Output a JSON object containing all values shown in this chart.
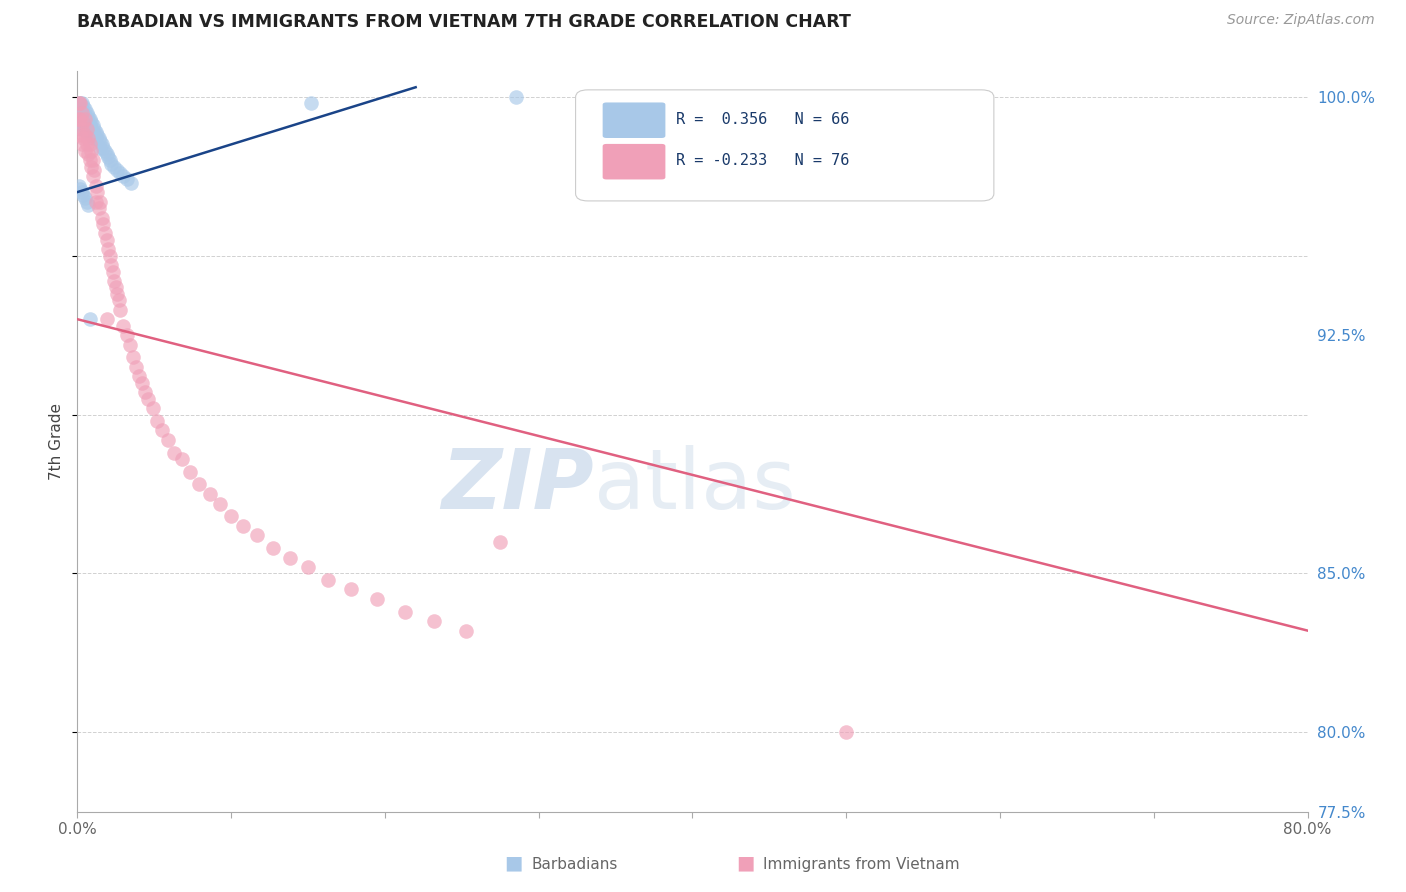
{
  "title": "BARBADIAN VS IMMIGRANTS FROM VIETNAM 7TH GRADE CORRELATION CHART",
  "source": "Source: ZipAtlas.com",
  "xlabel_label": "Barbadians",
  "xlabel_label2": "Immigrants from Vietnam",
  "ylabel": "7th Grade",
  "xmin": 0.0,
  "xmax": 0.8,
  "ymin": 0.775,
  "ymax": 1.008,
  "r_blue": 0.356,
  "n_blue": 66,
  "r_pink": -0.233,
  "n_pink": 76,
  "blue_color": "#a8c8e8",
  "pink_color": "#f0a0b8",
  "blue_line_color": "#1a4488",
  "pink_line_color": "#e06080",
  "title_color": "#222222",
  "source_color": "#999999",
  "right_tick_color": "#4488cc",
  "watermark_color": "#ccd8ee",
  "grid_color": "#cccccc",
  "blue_line_x": [
    0.0,
    0.22
  ],
  "blue_line_y": [
    0.97,
    1.003
  ],
  "pink_line_x": [
    0.0,
    0.8
  ],
  "pink_line_y": [
    0.93,
    0.832
  ],
  "blue_scatter_x": [
    0.001,
    0.001,
    0.001,
    0.002,
    0.002,
    0.002,
    0.002,
    0.003,
    0.003,
    0.003,
    0.003,
    0.003,
    0.004,
    0.004,
    0.004,
    0.004,
    0.005,
    0.005,
    0.005,
    0.005,
    0.006,
    0.006,
    0.006,
    0.006,
    0.007,
    0.007,
    0.007,
    0.008,
    0.008,
    0.008,
    0.009,
    0.009,
    0.01,
    0.01,
    0.01,
    0.011,
    0.011,
    0.012,
    0.012,
    0.013,
    0.014,
    0.015,
    0.015,
    0.016,
    0.017,
    0.018,
    0.019,
    0.02,
    0.021,
    0.022,
    0.024,
    0.026,
    0.028,
    0.03,
    0.032,
    0.035,
    0.001,
    0.002,
    0.003,
    0.004,
    0.005,
    0.006,
    0.007,
    0.152,
    0.285,
    0.008
  ],
  "blue_scatter_y": [
    0.998,
    0.996,
    0.994,
    0.998,
    0.996,
    0.994,
    0.992,
    0.998,
    0.996,
    0.994,
    0.992,
    0.99,
    0.997,
    0.995,
    0.993,
    0.991,
    0.996,
    0.994,
    0.992,
    0.99,
    0.995,
    0.993,
    0.991,
    0.989,
    0.994,
    0.992,
    0.99,
    0.993,
    0.991,
    0.989,
    0.992,
    0.99,
    0.991,
    0.989,
    0.987,
    0.99,
    0.988,
    0.989,
    0.987,
    0.988,
    0.987,
    0.986,
    0.984,
    0.985,
    0.984,
    0.983,
    0.982,
    0.981,
    0.98,
    0.979,
    0.978,
    0.977,
    0.976,
    0.975,
    0.974,
    0.973,
    0.972,
    0.971,
    0.97,
    0.969,
    0.968,
    0.967,
    0.966,
    0.998,
    1.0,
    0.93
  ],
  "pink_scatter_x": [
    0.001,
    0.001,
    0.002,
    0.002,
    0.002,
    0.003,
    0.003,
    0.003,
    0.004,
    0.004,
    0.005,
    0.005,
    0.005,
    0.006,
    0.006,
    0.007,
    0.007,
    0.008,
    0.008,
    0.009,
    0.009,
    0.01,
    0.01,
    0.011,
    0.012,
    0.012,
    0.013,
    0.014,
    0.015,
    0.016,
    0.017,
    0.018,
    0.019,
    0.02,
    0.021,
    0.022,
    0.023,
    0.024,
    0.025,
    0.026,
    0.027,
    0.028,
    0.03,
    0.032,
    0.034,
    0.036,
    0.038,
    0.04,
    0.042,
    0.044,
    0.046,
    0.049,
    0.052,
    0.055,
    0.059,
    0.063,
    0.068,
    0.073,
    0.079,
    0.086,
    0.093,
    0.1,
    0.108,
    0.117,
    0.127,
    0.138,
    0.15,
    0.163,
    0.178,
    0.195,
    0.213,
    0.232,
    0.253,
    0.019,
    0.5,
    0.275
  ],
  "pink_scatter_y": [
    0.998,
    0.993,
    0.998,
    0.993,
    0.988,
    0.995,
    0.99,
    0.985,
    0.992,
    0.987,
    0.993,
    0.988,
    0.983,
    0.99,
    0.985,
    0.987,
    0.982,
    0.985,
    0.98,
    0.983,
    0.978,
    0.98,
    0.975,
    0.977,
    0.972,
    0.967,
    0.97,
    0.965,
    0.967,
    0.962,
    0.96,
    0.957,
    0.955,
    0.952,
    0.95,
    0.947,
    0.945,
    0.942,
    0.94,
    0.938,
    0.936,
    0.933,
    0.928,
    0.925,
    0.922,
    0.918,
    0.915,
    0.912,
    0.91,
    0.907,
    0.905,
    0.902,
    0.898,
    0.895,
    0.892,
    0.888,
    0.886,
    0.882,
    0.878,
    0.875,
    0.872,
    0.868,
    0.865,
    0.862,
    0.858,
    0.855,
    0.852,
    0.848,
    0.845,
    0.842,
    0.838,
    0.835,
    0.832,
    0.93,
    0.8,
    0.86
  ]
}
